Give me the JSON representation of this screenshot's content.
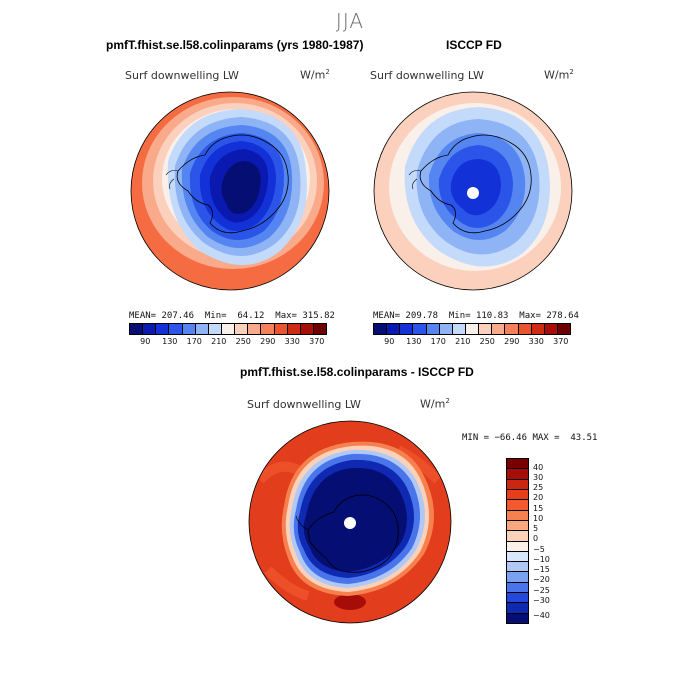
{
  "figure": {
    "season": "JJA"
  },
  "panels": [
    {
      "title": "pmfT.fhist.se.l58.colinparams (yrs 1980-1987)",
      "variable": "Surf downwelling LW",
      "units": "W/m",
      "units_exp": "2",
      "stats": "MEAN= 207.46  Min=  64.12  Max= 315.82",
      "pole_marker": false,
      "outer_color": "#f56c43"
    },
    {
      "title": "ISCCP FD",
      "variable": "Surf downwelling LW",
      "units": "W/m",
      "units_exp": "2",
      "stats": "MEAN= 209.78  Min= 110.83  Max= 278.64",
      "pole_marker": true,
      "outer_color": "#fbd0bc"
    },
    {
      "title": "pmfT.fhist.se.l58.colinparams - ISCCP FD",
      "variable": "Surf downwelling LW",
      "units": "W/m",
      "units_exp": "2",
      "stats": "MIN = −66.46 MAX =  43.51",
      "pole_marker": true,
      "outer_color": "#e23d1c"
    }
  ],
  "colorbar_abs": {
    "colors": [
      "#050e72",
      "#0a1ab0",
      "#1232d8",
      "#2a55e8",
      "#5585f0",
      "#8fb4f6",
      "#c4dafb",
      "#faf0ea",
      "#fbd0bc",
      "#f9aa8a",
      "#f5805c",
      "#ea552f",
      "#cf2a13",
      "#a80d08",
      "#6e0000"
    ],
    "tick_labels": [
      "90",
      "130",
      "170",
      "210",
      "250",
      "290",
      "330",
      "370"
    ]
  },
  "colorbar_diff": {
    "colors": [
      "#7a0000",
      "#a70d08",
      "#cc2612",
      "#e63e1c",
      "#f2592e",
      "#f7804f",
      "#f9a77e",
      "#fbd2b9",
      "#fbf1ea",
      "#d9e7fb",
      "#afc8f6",
      "#7aa0f0",
      "#4a74ea",
      "#2448d9",
      "#0f29b2",
      "#050e72"
    ],
    "tick_labels": [
      "40",
      "30",
      "25",
      "20",
      "15",
      "10",
      "5",
      "0",
      "−5",
      "−10",
      "−15",
      "−20",
      "−25",
      "−30",
      "−40"
    ]
  }
}
